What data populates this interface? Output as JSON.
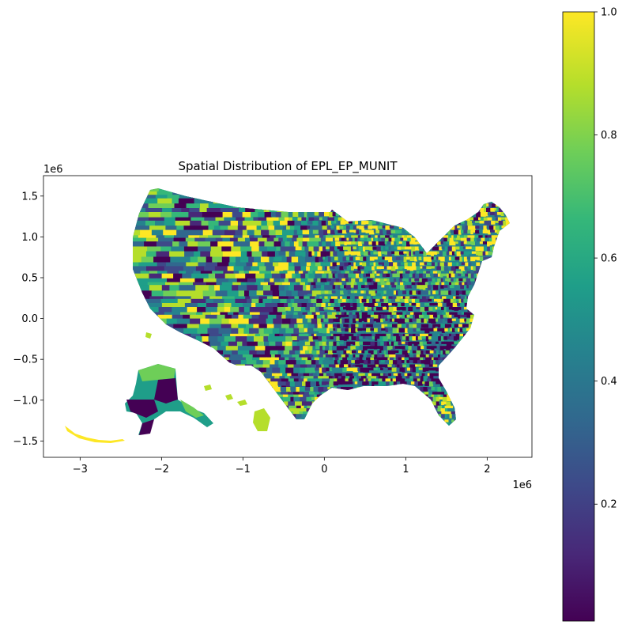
{
  "chart_data": {
    "type": "heatmap",
    "title": "Spatial Distribution of EPL_EP_MUNIT",
    "x_ticks": [
      -3,
      -2,
      -1,
      0,
      1,
      2
    ],
    "x_tick_labels": [
      "−3",
      "−2",
      "−1",
      "0",
      "1",
      "2"
    ],
    "x_offset_label": "1e6",
    "x_range": [
      -3.45,
      2.55
    ],
    "y_ticks": [
      1.5,
      1.0,
      0.5,
      0.0,
      -0.5,
      -1.0,
      -1.5
    ],
    "y_tick_labels": [
      "1.5",
      "1.0",
      "0.5",
      "0.0",
      "−0.5",
      "−1.0",
      "−1.5"
    ],
    "y_offset_label": "1e6",
    "y_range": [
      -1.7,
      1.75
    ],
    "colorbar": {
      "colormap": "viridis",
      "range": [
        0.01,
        1.0
      ],
      "ticks": [
        0.2,
        0.4,
        0.6,
        0.8,
        1.0
      ],
      "tick_labels": [
        "0.2",
        "0.4",
        "0.6",
        "0.8",
        "1.0"
      ],
      "colors": [
        "#440154",
        "#482878",
        "#3e4989",
        "#31688e",
        "#26828e",
        "#1f9e89",
        "#35b779",
        "#6ece58",
        "#b5de2b",
        "#fde725"
      ]
    },
    "grid": false
  }
}
